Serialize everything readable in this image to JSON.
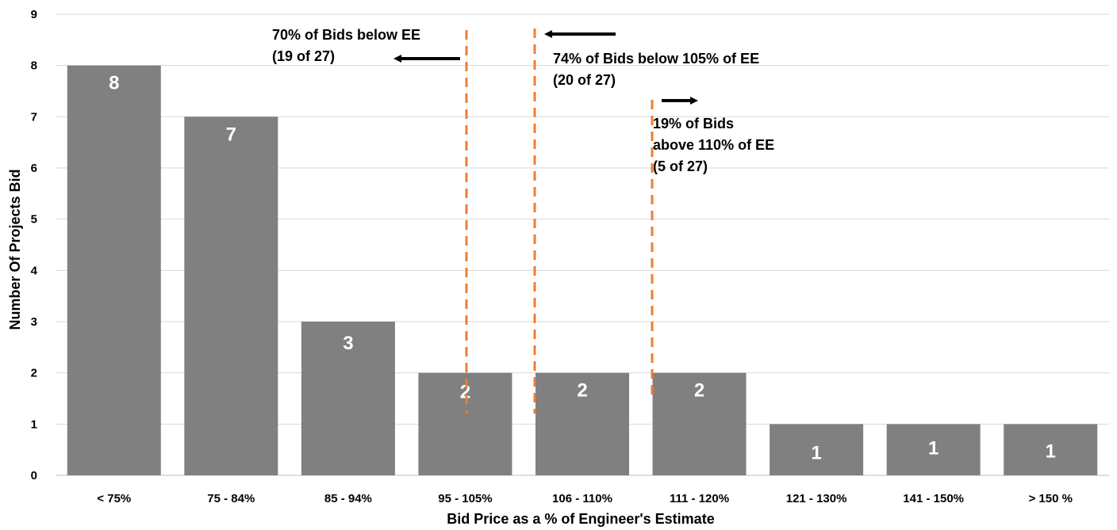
{
  "chart_data": {
    "type": "bar",
    "categories": [
      "< 75%",
      "75 - 84%",
      "85 - 94%",
      "95 - 105%",
      "106 - 110%",
      "111 - 120%",
      "121 - 130%",
      "141 - 150%",
      "> 150 %"
    ],
    "values": [
      8,
      7,
      3,
      2,
      2,
      2,
      1,
      1,
      1
    ],
    "data_labels": [
      "8",
      "7",
      "3",
      "2",
      "2",
      "2",
      "1",
      "1",
      "1"
    ],
    "xlabel": "Bid Price as a % of Engineer's Estimate",
    "ylabel": "Number Of Projects Bid",
    "ylim": [
      0,
      9
    ],
    "yticks": [
      "0",
      "1",
      "2",
      "3",
      "4",
      "5",
      "6",
      "7",
      "8",
      "9"
    ],
    "grid": true,
    "bar_color": "#808080",
    "grid_color": "#d9d9d9",
    "annotation_line_color": "#ed7d31",
    "annotations": [
      {
        "lines": [
          "70% of Bids below EE",
          "(19 of 27)"
        ],
        "arrow": "left"
      },
      {
        "lines": [
          "74% of Bids below 105% of EE",
          "(20 of 27)"
        ],
        "arrow": "left"
      },
      {
        "lines": [
          "19% of Bids",
          "above 110% of EE",
          "(5 of 27)"
        ],
        "arrow": "right"
      }
    ]
  }
}
